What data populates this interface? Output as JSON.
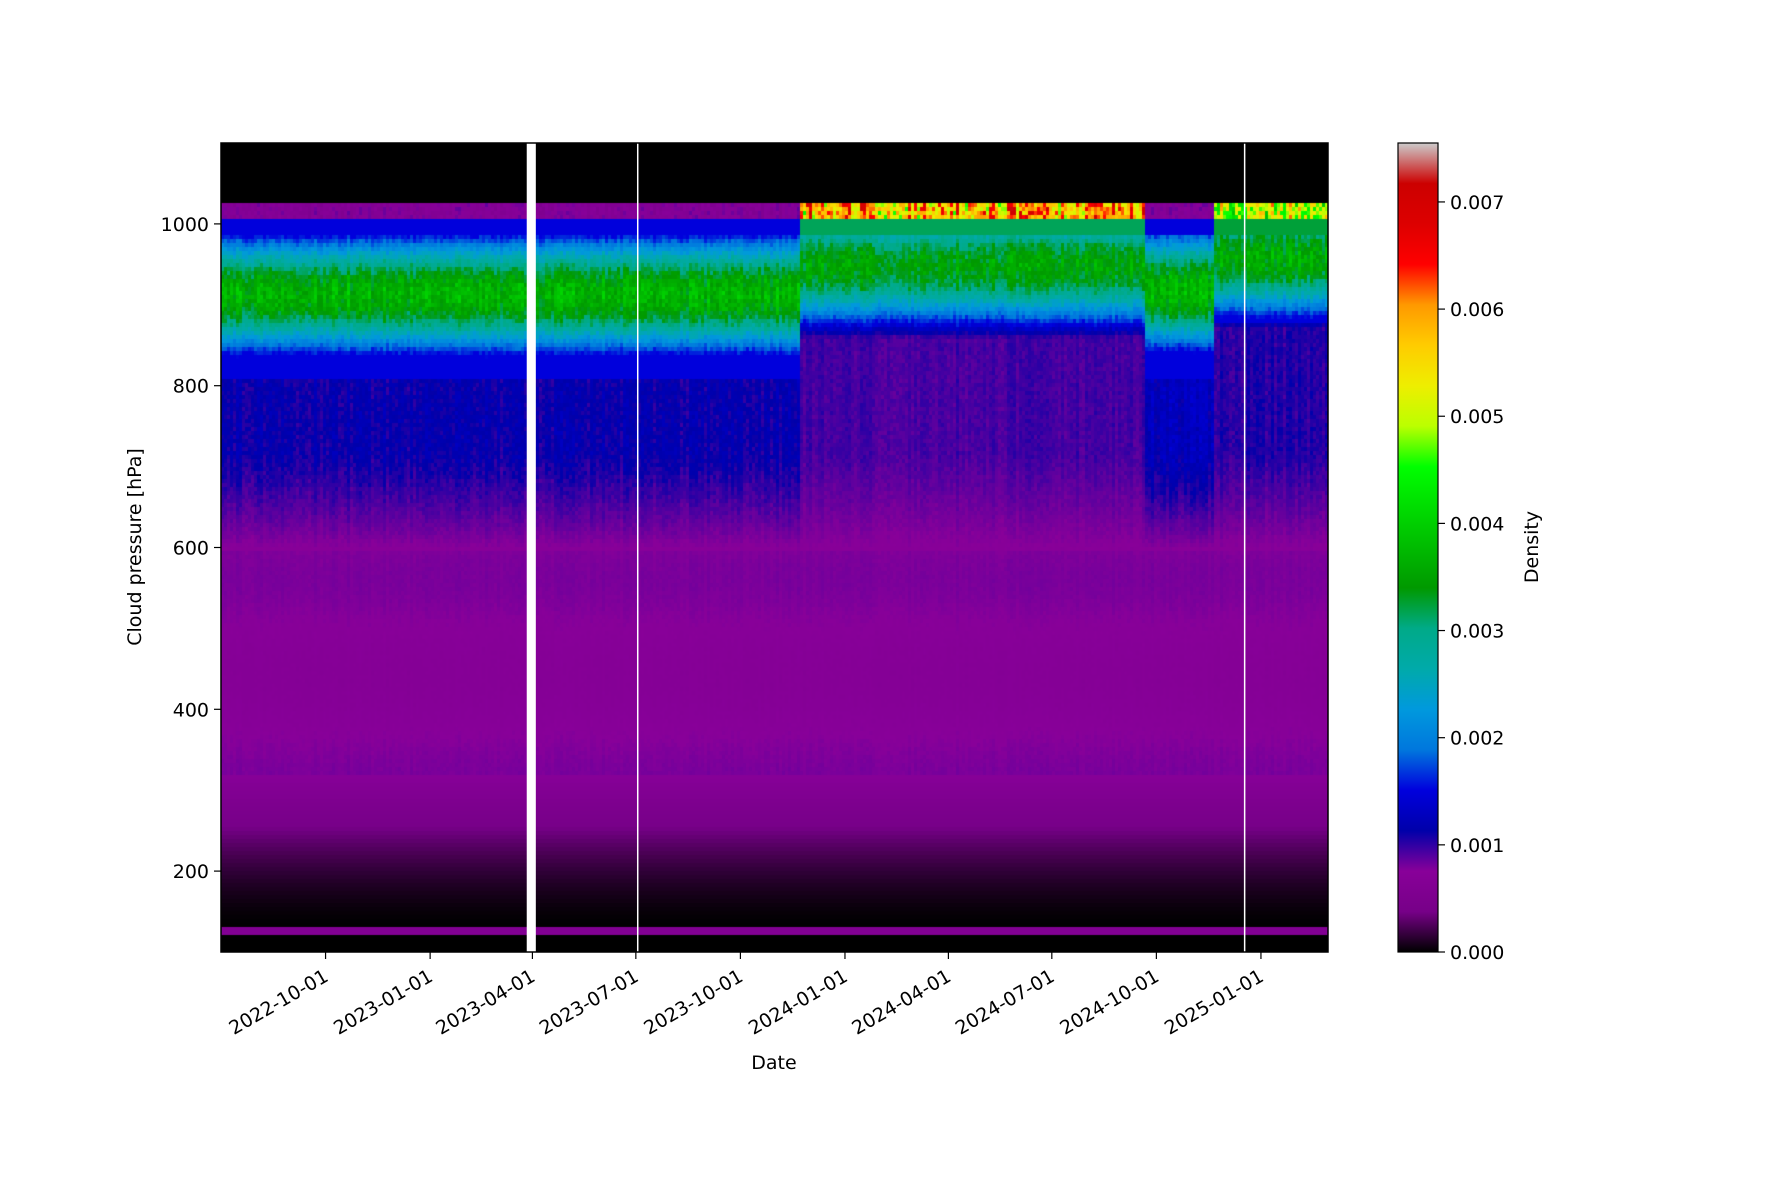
{
  "chart_data": {
    "type": "heatmap",
    "title": "",
    "xlabel": "Date",
    "ylabel": "Cloud pressure [hPa]",
    "colorbar_label": "Density",
    "colormap": "nipy_spectral",
    "x_range": [
      "2022-07-01",
      "2025-03-01"
    ],
    "ylim": [
      100,
      1100
    ],
    "clim": [
      0,
      0.00755
    ],
    "x_ticks": [
      "2022-10-01",
      "2023-01-01",
      "2023-04-01",
      "2023-07-01",
      "2023-10-01",
      "2024-01-01",
      "2024-04-01",
      "2024-07-01",
      "2024-10-01",
      "2025-01-01"
    ],
    "y_ticks": [
      200,
      400,
      600,
      800,
      1000
    ],
    "colorbar_ticks": [
      "0.000",
      "0.001",
      "0.002",
      "0.003",
      "0.004",
      "0.005",
      "0.006",
      "0.007"
    ],
    "colorbar_tick_values": [
      0,
      0.001,
      0.002,
      0.003,
      0.004,
      0.005,
      0.006,
      0.007
    ],
    "data_gaps": [
      {
        "start": "2023-03-27",
        "end": "2023-04-04"
      },
      {
        "start": "2023-07-02",
        "end": "2023-07-03"
      },
      {
        "start": "2024-12-17",
        "end": "2024-12-18"
      }
    ],
    "regimes": [
      {
        "start": "2022-07-01",
        "end": "2023-07-02",
        "low_cloud_peak_hPa": 915,
        "low_cloud_peak_density": 0.0037,
        "mid_level_density": 0.0011
      },
      {
        "start": "2023-07-03",
        "end": "2023-11-20",
        "low_cloud_peak_hPa": 915,
        "low_cloud_peak_density": 0.0037,
        "mid_level_density": 0.0011
      },
      {
        "start": "2023-11-20",
        "end": "2024-09-20",
        "low_cloud_peak_hPa": 950,
        "low_cloud_peak_density": 0.0035,
        "surface_band_density": 0.0058,
        "mid_level_density": 0.0009
      },
      {
        "start": "2024-09-20",
        "end": "2024-11-20",
        "low_cloud_peak_hPa": 920,
        "low_cloud_peak_density": 0.0037,
        "mid_level_density": 0.0012
      },
      {
        "start": "2024-11-20",
        "end": "2025-03-01",
        "low_cloud_peak_hPa": 960,
        "low_cloud_peak_density": 0.0036,
        "surface_band_density": 0.005,
        "mid_level_density": 0.001
      }
    ]
  }
}
